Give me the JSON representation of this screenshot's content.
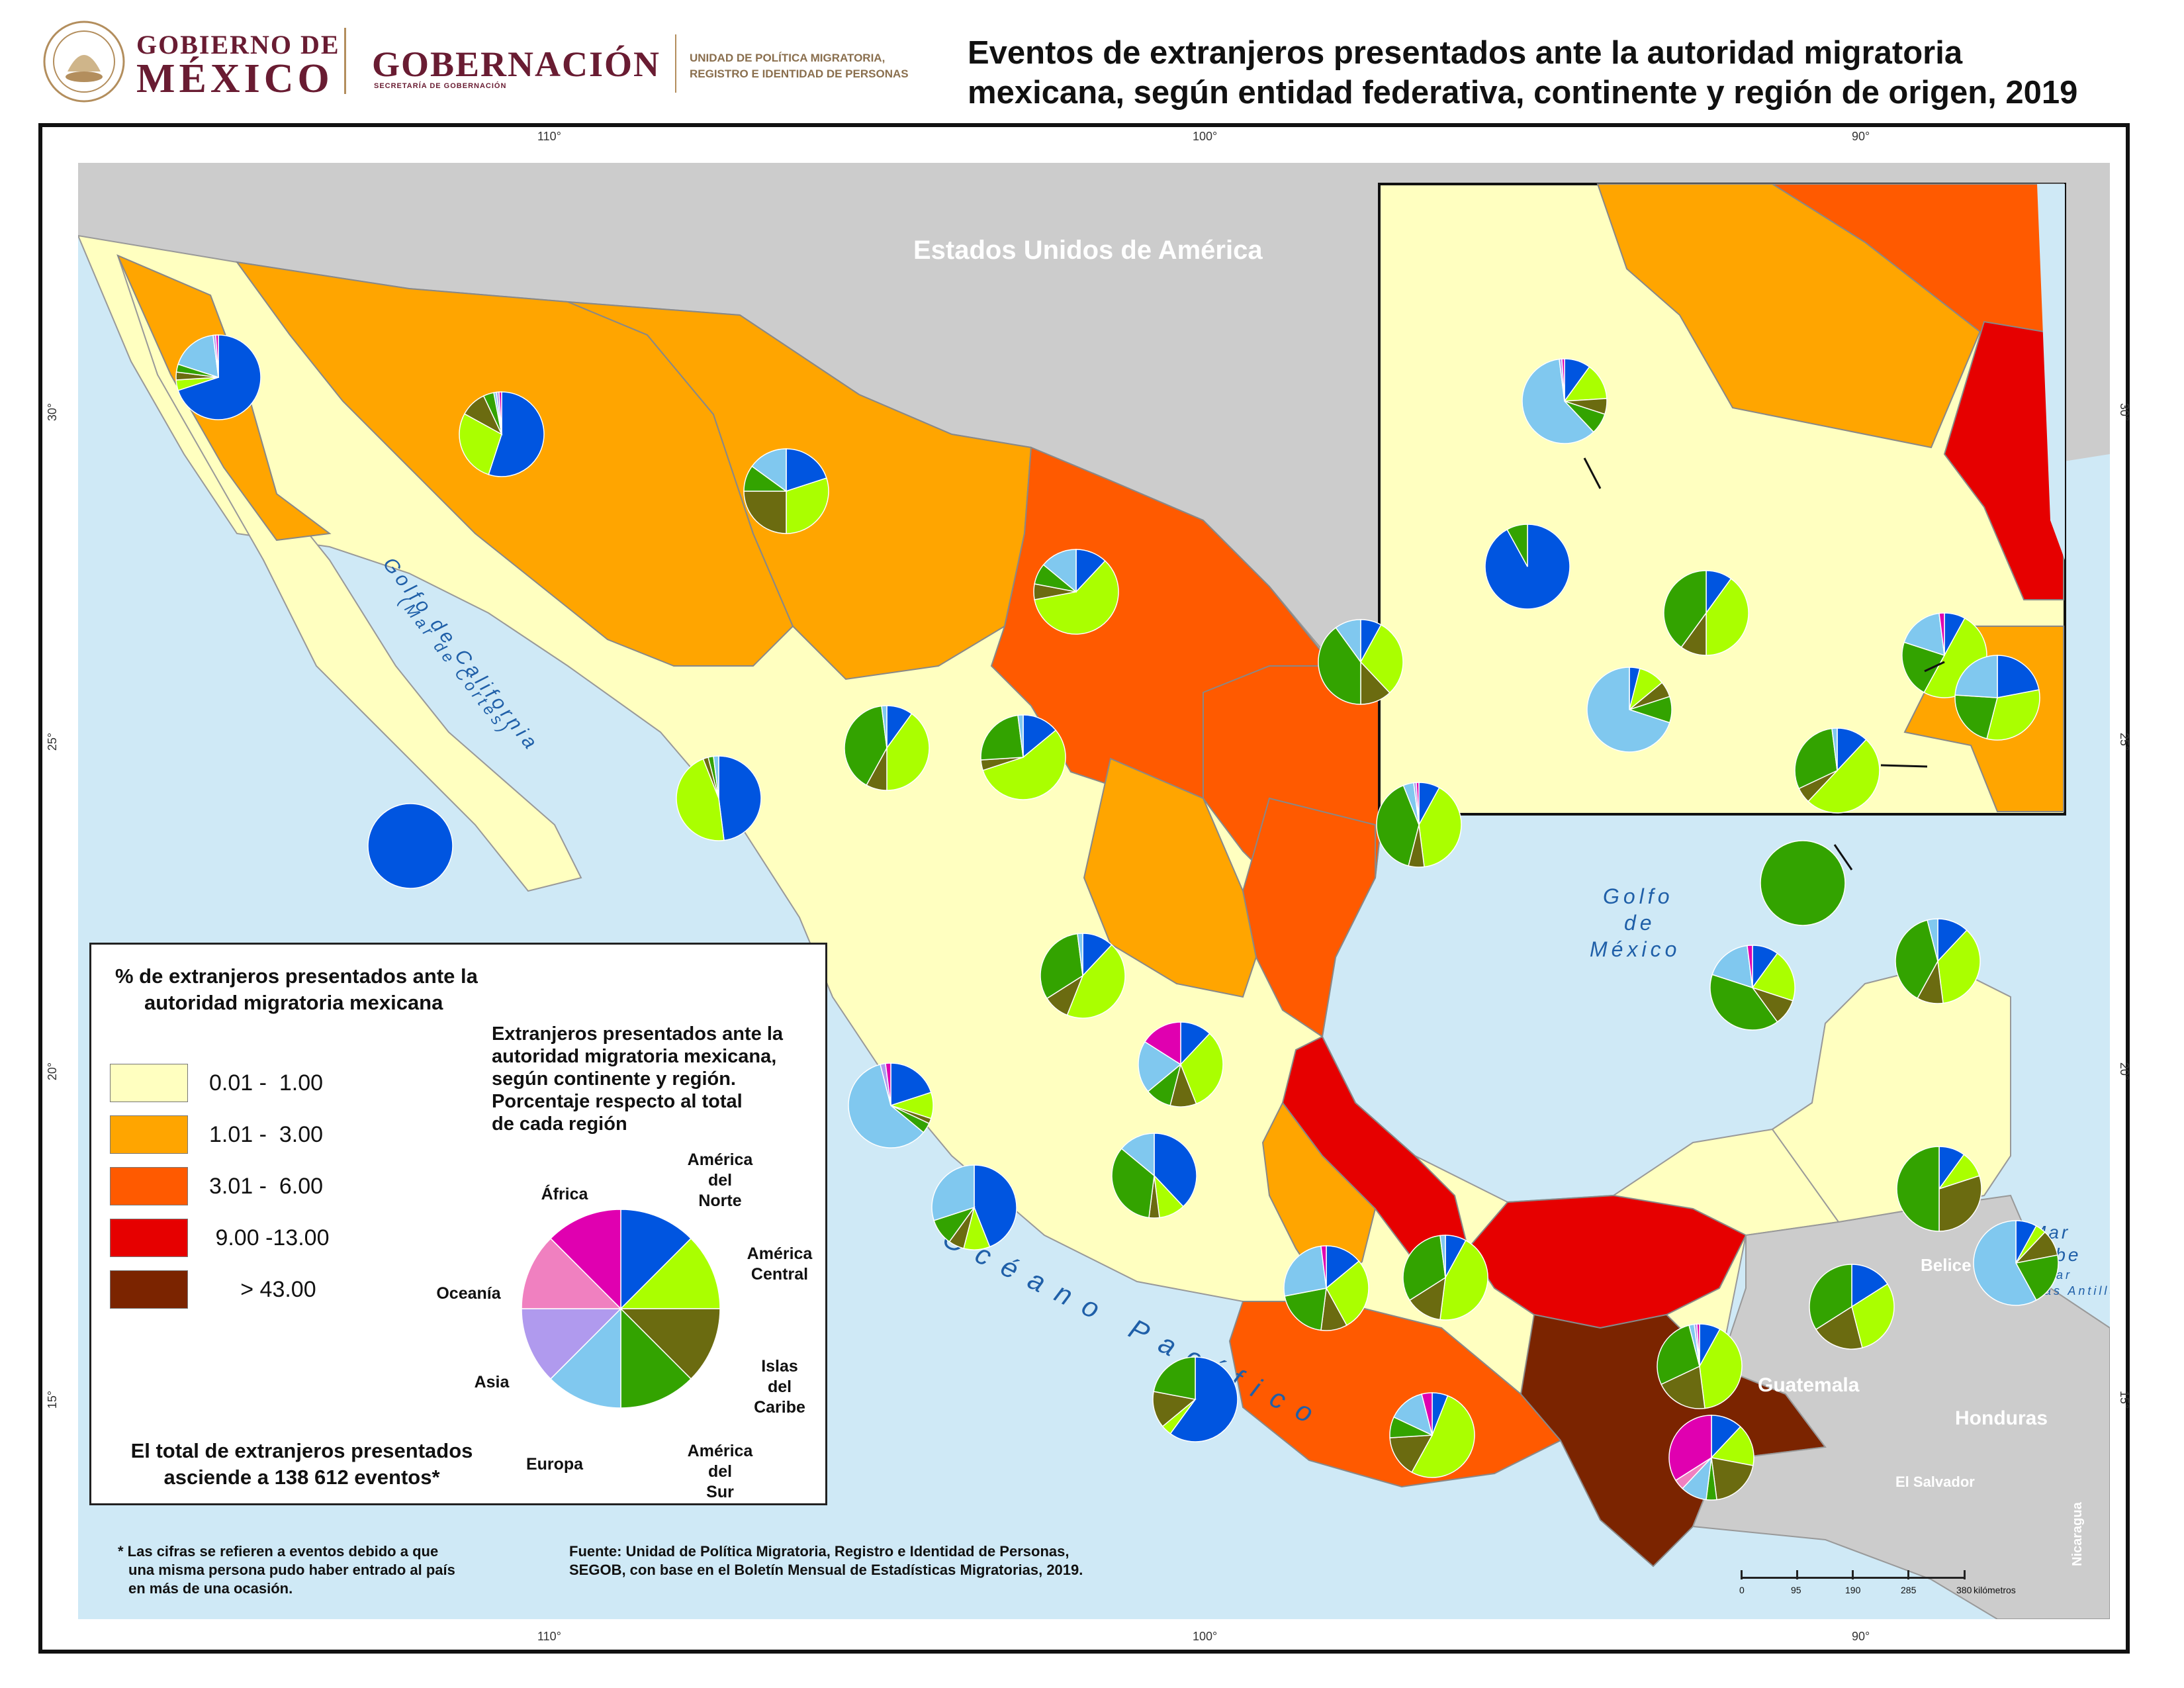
{
  "header": {
    "gobierno_line1": "GOBIERNO DE",
    "gobierno_line2": "MÉXICO",
    "gobernacion": "GOBERNACIÓN",
    "secretaria": "SECRETARÍA DE GOBERNACIÓN",
    "unidad_line1": "UNIDAD DE POLÍTICA MIGRATORIA,",
    "unidad_line2": "REGISTRO E IDENTIDAD DE PERSONAS",
    "title_line1": "Eventos de extranjeros presentados ante la autoridad migratoria",
    "title_line2": "mexicana, según entidad federativa, continente y región de origen, 2019"
  },
  "map": {
    "coord_top": [
      "110°",
      "100°",
      "90°"
    ],
    "coord_bottom": [
      "110°",
      "100°",
      "90°"
    ],
    "coord_left": [
      "30°",
      "25°",
      "20°",
      "15°"
    ],
    "coord_right": [
      "30°",
      "25°",
      "20°",
      "15°"
    ],
    "labels": {
      "usa": "Estados Unidos de América",
      "golfo_california": "Golfo de California",
      "mar_cortes": "(Mar de Cortés)",
      "golfo_mexico_1": "Golfo",
      "golfo_mexico_2": "de",
      "golfo_mexico_3": "México",
      "oceano_pacifico": "Océano Pacífico",
      "mar_caribe_1": "Mar",
      "mar_caribe_2": "Caribe",
      "mar_antillas_1": "(Mar",
      "mar_antillas_2": "de las Antillas)",
      "belice": "Belice",
      "guatemala": "Guatemala",
      "honduras": "Honduras",
      "el_salvador": "El Salvador",
      "nicaragua": "Nicaragua"
    },
    "colors": {
      "class1": "#ffffc0",
      "class2": "#ffa500",
      "class3": "#ff5a00",
      "class4": "#e60000",
      "class5": "#7b2400",
      "foreign": "#cccccc",
      "water": "#cfe9f6",
      "water_label": "#1f5fa8"
    }
  },
  "regions_colors": {
    "america_norte": "#0055e0",
    "america_central": "#aaff00",
    "islas_caribe": "#6b6b10",
    "america_sur": "#33a300",
    "europa": "#80c8ef",
    "asia": "#b09aee",
    "oceania": "#f080c0",
    "africa": "#e000b0"
  },
  "legend": {
    "title_line1": "% de extranjeros presentados ante la",
    "title_line2": "autoridad migratoria mexicana",
    "classes": [
      {
        "label": "0.01 -  1.00",
        "color": "#ffffc0"
      },
      {
        "label": "1.01 -  3.00",
        "color": "#ffa500"
      },
      {
        "label": "3.01 -  6.00",
        "color": "#ff5a00"
      },
      {
        "label": " 9.00 -13.00",
        "color": "#e60000"
      },
      {
        "label": "     > 43.00",
        "color": "#7b2400"
      }
    ],
    "pie_title_line1": "Extranjeros presentados ante la",
    "pie_title_line2": "autoridad migratoria mexicana,",
    "pie_title_line3": "según continente y región.",
    "pie_title_line4": "Porcentaje respecto al total",
    "pie_title_line5": "de cada región",
    "pie_labels": {
      "america_norte": [
        "América",
        "del",
        "Norte"
      ],
      "america_central": [
        "América",
        "Central"
      ],
      "islas_caribe": [
        "Islas",
        "del",
        "Caribe"
      ],
      "america_sur": [
        "América",
        "del",
        "Sur"
      ],
      "europa": "Europa",
      "asia": "Asia",
      "oceania": "Oceanía",
      "africa": "África"
    },
    "total_line1": "El total de extranjeros presentados",
    "total_line2": "asciende a 138 612 eventos*"
  },
  "footer": {
    "note_line1": "* Las cifras se refieren a eventos debido a que",
    "note_line2": "una misma persona pudo haber entrado al país",
    "note_line3": "en más de una ocasión.",
    "source_line1": "Fuente: Unidad de Política Migratoria, Registro e Identidad de Personas,",
    "source_line2": "SEGOB, con base en el Boletín Mensual de Estadísticas Migratorias, 2019."
  },
  "scale": {
    "ticks": [
      "0",
      "95",
      "190",
      "285",
      "380"
    ],
    "unit": "kilómetros"
  }
}
